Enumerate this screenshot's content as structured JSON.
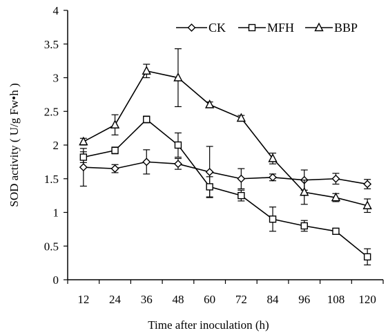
{
  "chart_data": {
    "type": "line",
    "title": "",
    "xlabel": "Time after inoculation (h)",
    "ylabel": "SOD activity ( U/g Fw•h )",
    "categories": [
      "12",
      "24",
      "36",
      "48",
      "60",
      "72",
      "84",
      "96",
      "108",
      "120"
    ],
    "ylim": [
      0,
      4
    ],
    "yticks": [
      "0",
      "0.5",
      "1",
      "1.5",
      "2",
      "2.5",
      "3",
      "3.5",
      "4"
    ],
    "grid": false,
    "legend_position": "top-right",
    "series": [
      {
        "name": "CK",
        "marker": "diamond",
        "values": [
          1.67,
          1.65,
          1.75,
          1.72,
          1.6,
          1.5,
          1.52,
          1.48,
          1.5,
          1.42
        ],
        "errors": [
          0.28,
          0.06,
          0.18,
          0.08,
          0.38,
          0.15,
          0.05,
          0.15,
          0.08,
          0.07
        ]
      },
      {
        "name": "MFH",
        "marker": "square",
        "values": [
          1.82,
          1.92,
          2.38,
          2.0,
          1.38,
          1.25,
          0.9,
          0.8,
          0.72,
          0.34
        ],
        "errors": [
          0.08,
          0.05,
          0.05,
          0.18,
          0.15,
          0.08,
          0.18,
          0.08,
          0.04,
          0.12
        ]
      },
      {
        "name": "BBP",
        "marker": "triangle",
        "values": [
          2.05,
          2.3,
          3.1,
          3.0,
          2.6,
          2.4,
          1.8,
          1.3,
          1.22,
          1.1
        ],
        "errors": [
          0.05,
          0.15,
          0.1,
          0.43,
          0.04,
          0.04,
          0.08,
          0.18,
          0.06,
          0.1
        ]
      }
    ]
  }
}
